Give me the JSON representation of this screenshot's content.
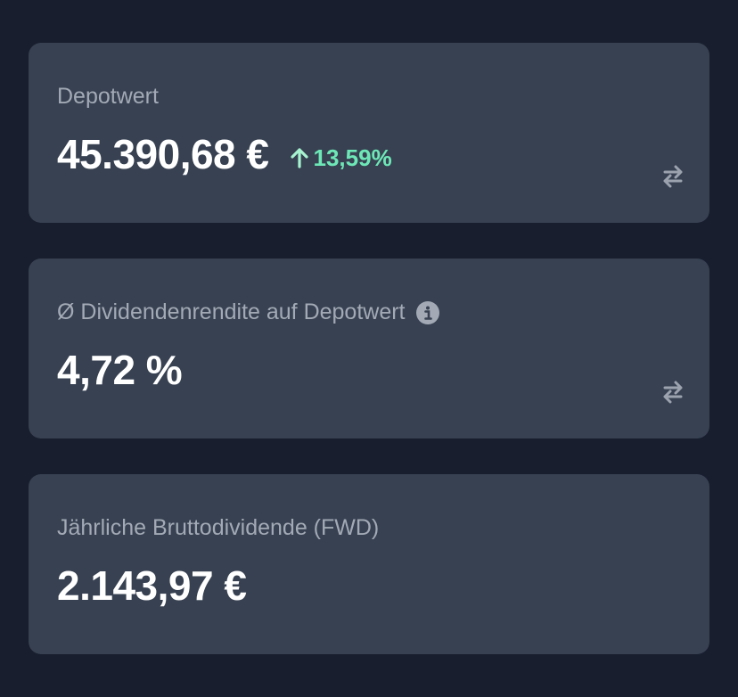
{
  "cards": [
    {
      "label": "Depotwert",
      "value": "45.390,68 €",
      "change": "13,59%",
      "change_direction": "up",
      "has_swap": true
    },
    {
      "label": "Ø Dividendenrendite auf Depotwert",
      "value": "4,72 %",
      "has_info": true,
      "has_swap": true
    },
    {
      "label": "Jährliche Bruttodividende (FWD)",
      "value": "2.143,97 €"
    }
  ],
  "colors": {
    "background": "#181e2e",
    "card": "#374151",
    "positive": "#6ee7b7",
    "label": "#a3aab6"
  },
  "icons": {
    "change": "arrow-up-icon",
    "swap": "swap-arrows-icon",
    "info": "info-icon"
  }
}
